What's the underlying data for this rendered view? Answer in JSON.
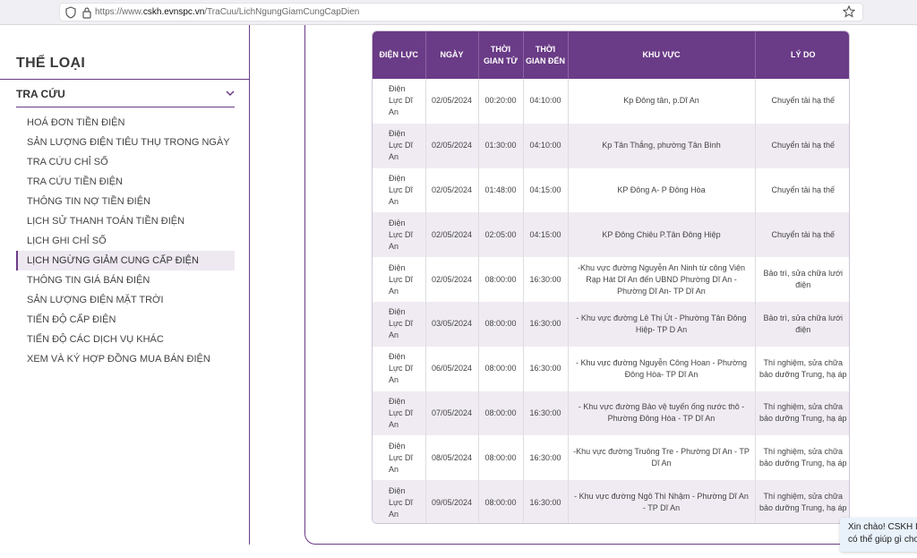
{
  "browser": {
    "url_prefix": "https://www.",
    "url_domain": "cskh.evnspc.vn",
    "url_path": "/TraCuu/LichNgungGiamCungCapDien"
  },
  "sidebar": {
    "title": "THỂ LOẠI",
    "section": "TRA CỨU",
    "items": [
      "HOÁ ĐƠN TIỀN ĐIỆN",
      "SẢN LƯỢNG ĐIỆN TIÊU THỤ TRONG NGÀY",
      "TRA CỨU CHỈ SỐ",
      "TRA CỨU TIỀN ĐIỆN",
      "THÔNG TIN NỢ TIỀN ĐIỆN",
      "LỊCH SỬ THANH TOÁN TIỀN ĐIỆN",
      "LỊCH GHI CHỈ SỐ",
      "LỊCH NGỪNG GIẢM CUNG CẤP ĐIỆN",
      "THÔNG TIN GIÁ BÁN ĐIỆN",
      "SẢN LƯỢNG ĐIỆN MẶT TRỜI",
      "TIẾN ĐỘ CẤP ĐIỆN",
      "TIẾN ĐỘ CÁC DỊCH VỤ KHÁC",
      "XEM VÀ KÝ HỢP ĐỒNG MUA BÁN ĐIỆN"
    ],
    "active_index": 7
  },
  "table": {
    "headers": [
      "ĐIỆN LỰC",
      "NGÀY",
      "THỜI GIAN TỪ",
      "THỜI GIAN ĐẾN",
      "KHU VỰC",
      "LÝ DO"
    ],
    "rows": [
      [
        "Điện Lực Dĩ An",
        "02/05/2024",
        "00:20:00",
        "04:10:00",
        "Kp Đông tân, p.Dĩ An",
        "Chuyển tải hạ thế"
      ],
      [
        "Điện Lực Dĩ An",
        "02/05/2024",
        "01:30:00",
        "04:10:00",
        "Kp Tân Thắng, phường Tân Bình",
        "Chuyển tải hạ thế"
      ],
      [
        "Điện Lực Dĩ An",
        "02/05/2024",
        "01:48:00",
        "04:15:00",
        "KP Đông A- P Đông Hòa",
        "Chuyển tải hạ thế"
      ],
      [
        "Điện Lực Dĩ An",
        "02/05/2024",
        "02:05:00",
        "04:15:00",
        "KP Đông Chiêu P.Tân Đông Hiệp",
        "Chuyển tải hạ thế"
      ],
      [
        "Điện Lực Dĩ An",
        "02/05/2024",
        "08:00:00",
        "16:30:00",
        "-Khu vực đường Nguyễn An Ninh từ công Viên Rạp Hát Dĩ An đến UBND Phường Dĩ An - Phường Dĩ An- TP Dĩ An",
        "Bảo trì, sửa chữa lưới điện"
      ],
      [
        "Điện Lực Dĩ An",
        "03/05/2024",
        "08:00:00",
        "16:30:00",
        "- Khu vực đường Lê Thị Út - Phường Tân Đông Hiệp- TP D An",
        "Bảo trì, sửa chữa lưới điện"
      ],
      [
        "Điện Lực Dĩ An",
        "06/05/2024",
        "08:00:00",
        "16:30:00",
        "- Khu vực đường Nguyễn Công Hoan - Phường Đông Hòa- TP Dĩ An",
        "Thí nghiệm, sửa chữa bảo dưỡng Trung, hạ áp"
      ],
      [
        "Điện Lực Dĩ An",
        "07/05/2024",
        "08:00:00",
        "16:30:00",
        "- Khu vực đường Bảo vệ tuyến ống nước thô - Phường Đông Hòa - TP Dĩ An",
        "Thí nghiệm, sửa chữa bảo dưỡng Trung, hạ áp"
      ],
      [
        "Điện Lực Dĩ An",
        "08/05/2024",
        "08:00:00",
        "16:30:00",
        "-Khu vực đường Truông Tre - Phường Dĩ An - TP Dĩ An",
        "Thí nghiệm, sửa chữa bảo dưỡng Trung, hạ áp"
      ],
      [
        "Điện Lực Dĩ An",
        "09/05/2024",
        "08:00:00",
        "16:30:00",
        "- Khu vực đường Ngô Thì Nhậm - Phường Dĩ An - TP Dĩ An",
        "Thí nghiệm, sửa chữa bảo dưỡng Trung, hạ áp"
      ]
    ]
  },
  "chat": {
    "line1": "Xin chào! CSKH I",
    "line2": "có thể giúp gì cho"
  }
}
